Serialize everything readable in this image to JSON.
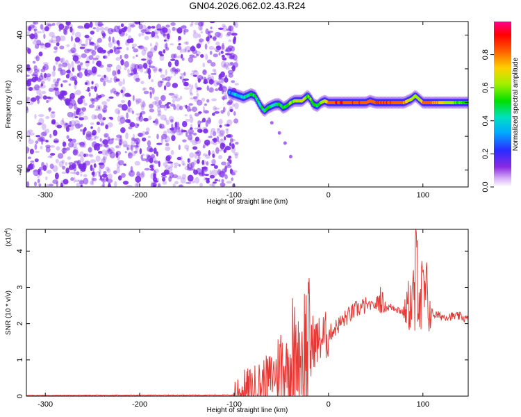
{
  "title": "GN04.2026.062.02.43.R24",
  "chart_data": [
    {
      "type": "heatmap",
      "xlabel": "Height of straight line (km)",
      "ylabel": "Frequency (Hz)",
      "xlim": [
        -320,
        148
      ],
      "ylim": [
        -50,
        48
      ],
      "x_ticks": [
        -300,
        -200,
        -100,
        0,
        100
      ],
      "y_ticks": [
        -40,
        -20,
        0,
        20,
        40
      ],
      "x_tick_labels": [
        "-300",
        "-200",
        "-100",
        "0",
        "100"
      ],
      "y_tick_labels": [
        "-40",
        "-20",
        "0",
        "20",
        "40"
      ],
      "colorbar": {
        "label": "Normalized spectral amplitude",
        "range": [
          0,
          1
        ],
        "ticks": [
          0.0,
          0.2,
          0.4,
          0.6,
          0.8
        ],
        "tick_labels": [
          "0.0",
          "0.2",
          "0.4",
          "0.6",
          "0.8"
        ],
        "colors": [
          "#ffffff",
          "#d8b4f8",
          "#8a2be2",
          "#3a2bff",
          "#00b8ff",
          "#00e0a0",
          "#00e000",
          "#c0ff00",
          "#ffd000",
          "#ff6000",
          "#ff0000",
          "#ff0080"
        ]
      },
      "noise_region_x": [
        -320,
        -97
      ],
      "noise_color": "#7b2be8",
      "ridge": {
        "x": [
          -105,
          -95,
          -90,
          -86,
          -82,
          -78,
          -75,
          -72,
          -68,
          -64,
          -60,
          -56,
          -52,
          -48,
          -44,
          -40,
          -36,
          -32,
          -28,
          -24,
          -22,
          -19,
          -16,
          -12,
          -8,
          -4,
          0,
          10,
          20,
          30,
          40,
          44,
          50,
          60,
          70,
          80,
          84,
          88,
          92,
          96,
          100,
          104,
          110,
          120,
          130,
          140,
          148
        ],
        "y": [
          6,
          4,
          3,
          4,
          5,
          4,
          1,
          -2,
          -5,
          -3,
          -2,
          -1,
          -1,
          -3,
          -2,
          0,
          1,
          1,
          1,
          3,
          4,
          2,
          -1,
          -2,
          0,
          1,
          0,
          0,
          0,
          0,
          0,
          1,
          0,
          0,
          0,
          0,
          1,
          2,
          4,
          2,
          0,
          0,
          0,
          0,
          0,
          0,
          0
        ],
        "amplitude": [
          0.35,
          0.4,
          0.45,
          0.5,
          0.55,
          0.55,
          0.5,
          0.5,
          0.55,
          0.55,
          0.5,
          0.5,
          0.55,
          0.55,
          0.55,
          0.6,
          0.65,
          0.7,
          0.7,
          0.65,
          0.6,
          0.6,
          0.55,
          0.55,
          0.6,
          0.7,
          0.85,
          0.9,
          0.9,
          0.9,
          0.9,
          0.85,
          0.9,
          0.9,
          0.9,
          0.85,
          0.75,
          0.7,
          0.7,
          0.75,
          0.8,
          0.85,
          0.85,
          0.75,
          0.65,
          0.6,
          0.55
        ]
      },
      "branch": {
        "x": [
          -70,
          -60,
          -52,
          -46,
          -40
        ],
        "y": [
          -5,
          -12,
          -18,
          -24,
          -32
        ]
      }
    },
    {
      "type": "line",
      "xlabel": "Height of straight line (km)",
      "ylabel": "SNR (10 * v/v)",
      "multiplier_label": "(x10",
      "multiplier_exponent": "4",
      "multiplier_close": ")",
      "xlim": [
        -320,
        148
      ],
      "ylim": [
        0,
        4.6
      ],
      "x_ticks": [
        -300,
        -200,
        -100,
        0,
        100
      ],
      "y_ticks": [
        0,
        1,
        2,
        3,
        4
      ],
      "x_tick_labels": [
        "-300",
        "-200",
        "-100",
        "0",
        "100"
      ],
      "y_tick_labels": [
        "0",
        "1",
        "2",
        "3",
        "4"
      ],
      "line_color": "#e53935",
      "series": [
        {
          "x": [
            -320,
            -100,
            -90,
            -80,
            -70,
            -60,
            -50,
            -40,
            -30,
            -20,
            -10,
            0,
            10,
            20,
            30,
            40,
            50,
            55,
            60,
            70,
            80,
            85,
            90,
            94,
            95,
            96,
            98,
            100,
            104,
            108,
            112,
            120,
            130,
            140,
            148
          ],
          "y": [
            0.02,
            0.03,
            0.05,
            0.15,
            0.35,
            0.55,
            0.8,
            0.95,
            1.2,
            1.4,
            1.55,
            1.7,
            1.95,
            2.2,
            2.4,
            2.5,
            2.5,
            2.7,
            2.45,
            2.45,
            2.3,
            2.5,
            2.6,
            3.3,
            4.4,
            3.4,
            2.6,
            2.9,
            2.6,
            2.3,
            2.25,
            2.2,
            2.2,
            2.2,
            2.1
          ],
          "spikes": [
            {
              "x": -50,
              "amp": 0.9
            },
            {
              "x": -38,
              "amp": 1.3
            },
            {
              "x": -28,
              "amp": 1.1
            },
            {
              "x": -22,
              "amp": 1.7
            },
            {
              "x": 55,
              "amp": 0.3
            },
            {
              "x": 85,
              "amp": 0.7
            },
            {
              "x": 92,
              "amp": 1.4
            },
            {
              "x": 96,
              "amp": 1.7
            },
            {
              "x": 104,
              "amp": 1.1
            }
          ]
        }
      ]
    }
  ]
}
